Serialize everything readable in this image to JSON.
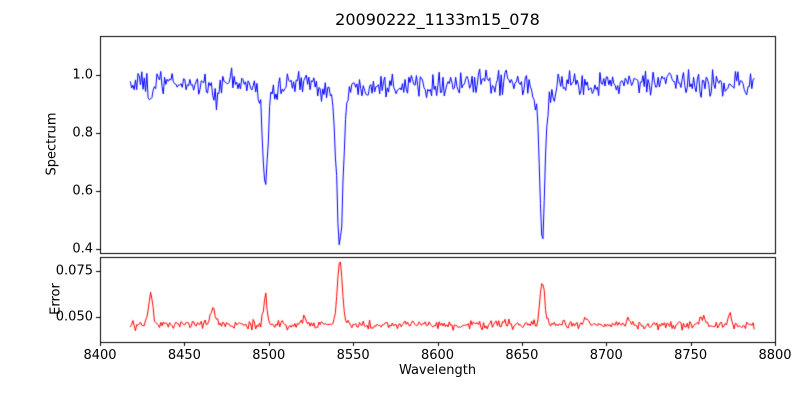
{
  "chart_data": {
    "type": "line",
    "title": "20090222_1133m15_078",
    "xlabel": "Wavelength",
    "grid": false,
    "legend": null,
    "xlim": [
      8400,
      8800
    ],
    "xticks": [
      8400,
      8450,
      8500,
      8550,
      8600,
      8650,
      8700,
      8750,
      8800
    ],
    "xtick_labels": [
      "8400",
      "8450",
      "8500",
      "8550",
      "8600",
      "8650",
      "8700",
      "8750",
      "8800"
    ],
    "x_start": 8418,
    "x_end": 8788,
    "x_step": 0.75,
    "panels": [
      {
        "name": "spectrum",
        "ylabel": "Spectrum",
        "color": "#0000ff",
        "ylim": [
          0.386,
          1.134
        ],
        "yticks": [
          0.4,
          0.6,
          0.8,
          1.0
        ],
        "ytick_labels": [
          "0.4",
          "0.6",
          "0.8",
          "1.0"
        ],
        "baseline": 0.97,
        "noise_sigma": 0.021,
        "features": [
          {
            "center": 8430.0,
            "amp": 0.05,
            "width": 1.2,
            "direction": "dip"
          },
          {
            "center": 8468.0,
            "amp": 0.06,
            "width": 1.3,
            "direction": "dip"
          },
          {
            "center": 8498.0,
            "amp": 0.315,
            "width": 1.4,
            "wing_amp": 0.04,
            "wing_width": 5,
            "direction": "dip"
          },
          {
            "center": 8542.1,
            "amp": 0.51,
            "width": 1.8,
            "wing_amp": 0.05,
            "wing_width": 6,
            "direction": "dip"
          },
          {
            "center": 8662.1,
            "amp": 0.475,
            "width": 1.6,
            "wing_amp": 0.05,
            "wing_width": 5,
            "direction": "dip"
          }
        ]
      },
      {
        "name": "error",
        "ylabel": "Error",
        "color": "#ff0000",
        "ylim": [
          0.036,
          0.083
        ],
        "yticks": [
          0.05,
          0.075
        ],
        "ytick_labels": [
          "0.050",
          "0.075"
        ],
        "baseline": 0.0455,
        "noise_sigma": 0.0012,
        "features": [
          {
            "center": 8430.0,
            "amp": 0.017,
            "width": 1.2,
            "direction": "peak"
          },
          {
            "center": 8467.0,
            "amp": 0.008,
            "width": 1.3,
            "direction": "peak"
          },
          {
            "center": 8498.0,
            "amp": 0.015,
            "width": 1.2,
            "direction": "peak"
          },
          {
            "center": 8521.0,
            "amp": 0.004,
            "width": 1.2,
            "direction": "peak"
          },
          {
            "center": 8542.1,
            "amp": 0.035,
            "width": 1.5,
            "direction": "peak"
          },
          {
            "center": 8662.1,
            "amp": 0.024,
            "width": 1.4,
            "direction": "peak"
          },
          {
            "center": 8688.0,
            "amp": 0.005,
            "width": 1.2,
            "direction": "peak"
          },
          {
            "center": 8713.0,
            "amp": 0.003,
            "width": 1.2,
            "direction": "peak"
          },
          {
            "center": 8757.0,
            "amp": 0.004,
            "width": 1.2,
            "direction": "peak"
          },
          {
            "center": 8773.0,
            "amp": 0.005,
            "width": 1.2,
            "direction": "peak"
          }
        ]
      }
    ]
  }
}
